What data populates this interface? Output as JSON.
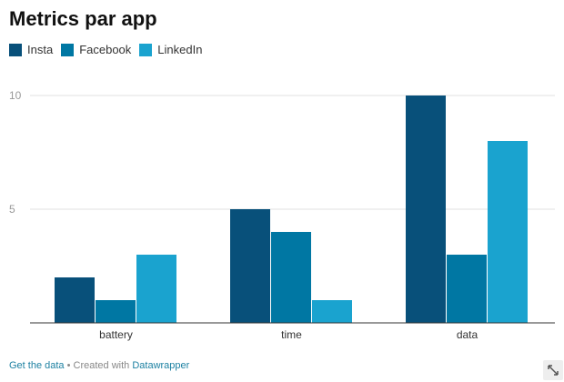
{
  "chart_data": {
    "type": "bar",
    "title": "Metrics par app",
    "categories": [
      "battery",
      "time",
      "data"
    ],
    "series": [
      {
        "name": "Insta",
        "color": "#08507a",
        "values": [
          2,
          5,
          10
        ]
      },
      {
        "name": "Facebook",
        "color": "#0077a3",
        "values": [
          1,
          4,
          3
        ]
      },
      {
        "name": "LinkedIn",
        "color": "#1aa3cf",
        "values": [
          3,
          1,
          8
        ]
      }
    ],
    "yticks": [
      5,
      10
    ],
    "ylim": [
      0,
      10
    ],
    "xlabel": "",
    "ylabel": "",
    "grid": true,
    "legend": "top-left"
  },
  "footer": {
    "get_data": "Get the data",
    "separator": " • Created with ",
    "tool": "Datawrapper"
  },
  "icons": {
    "expand": "expand-arrows-icon"
  }
}
